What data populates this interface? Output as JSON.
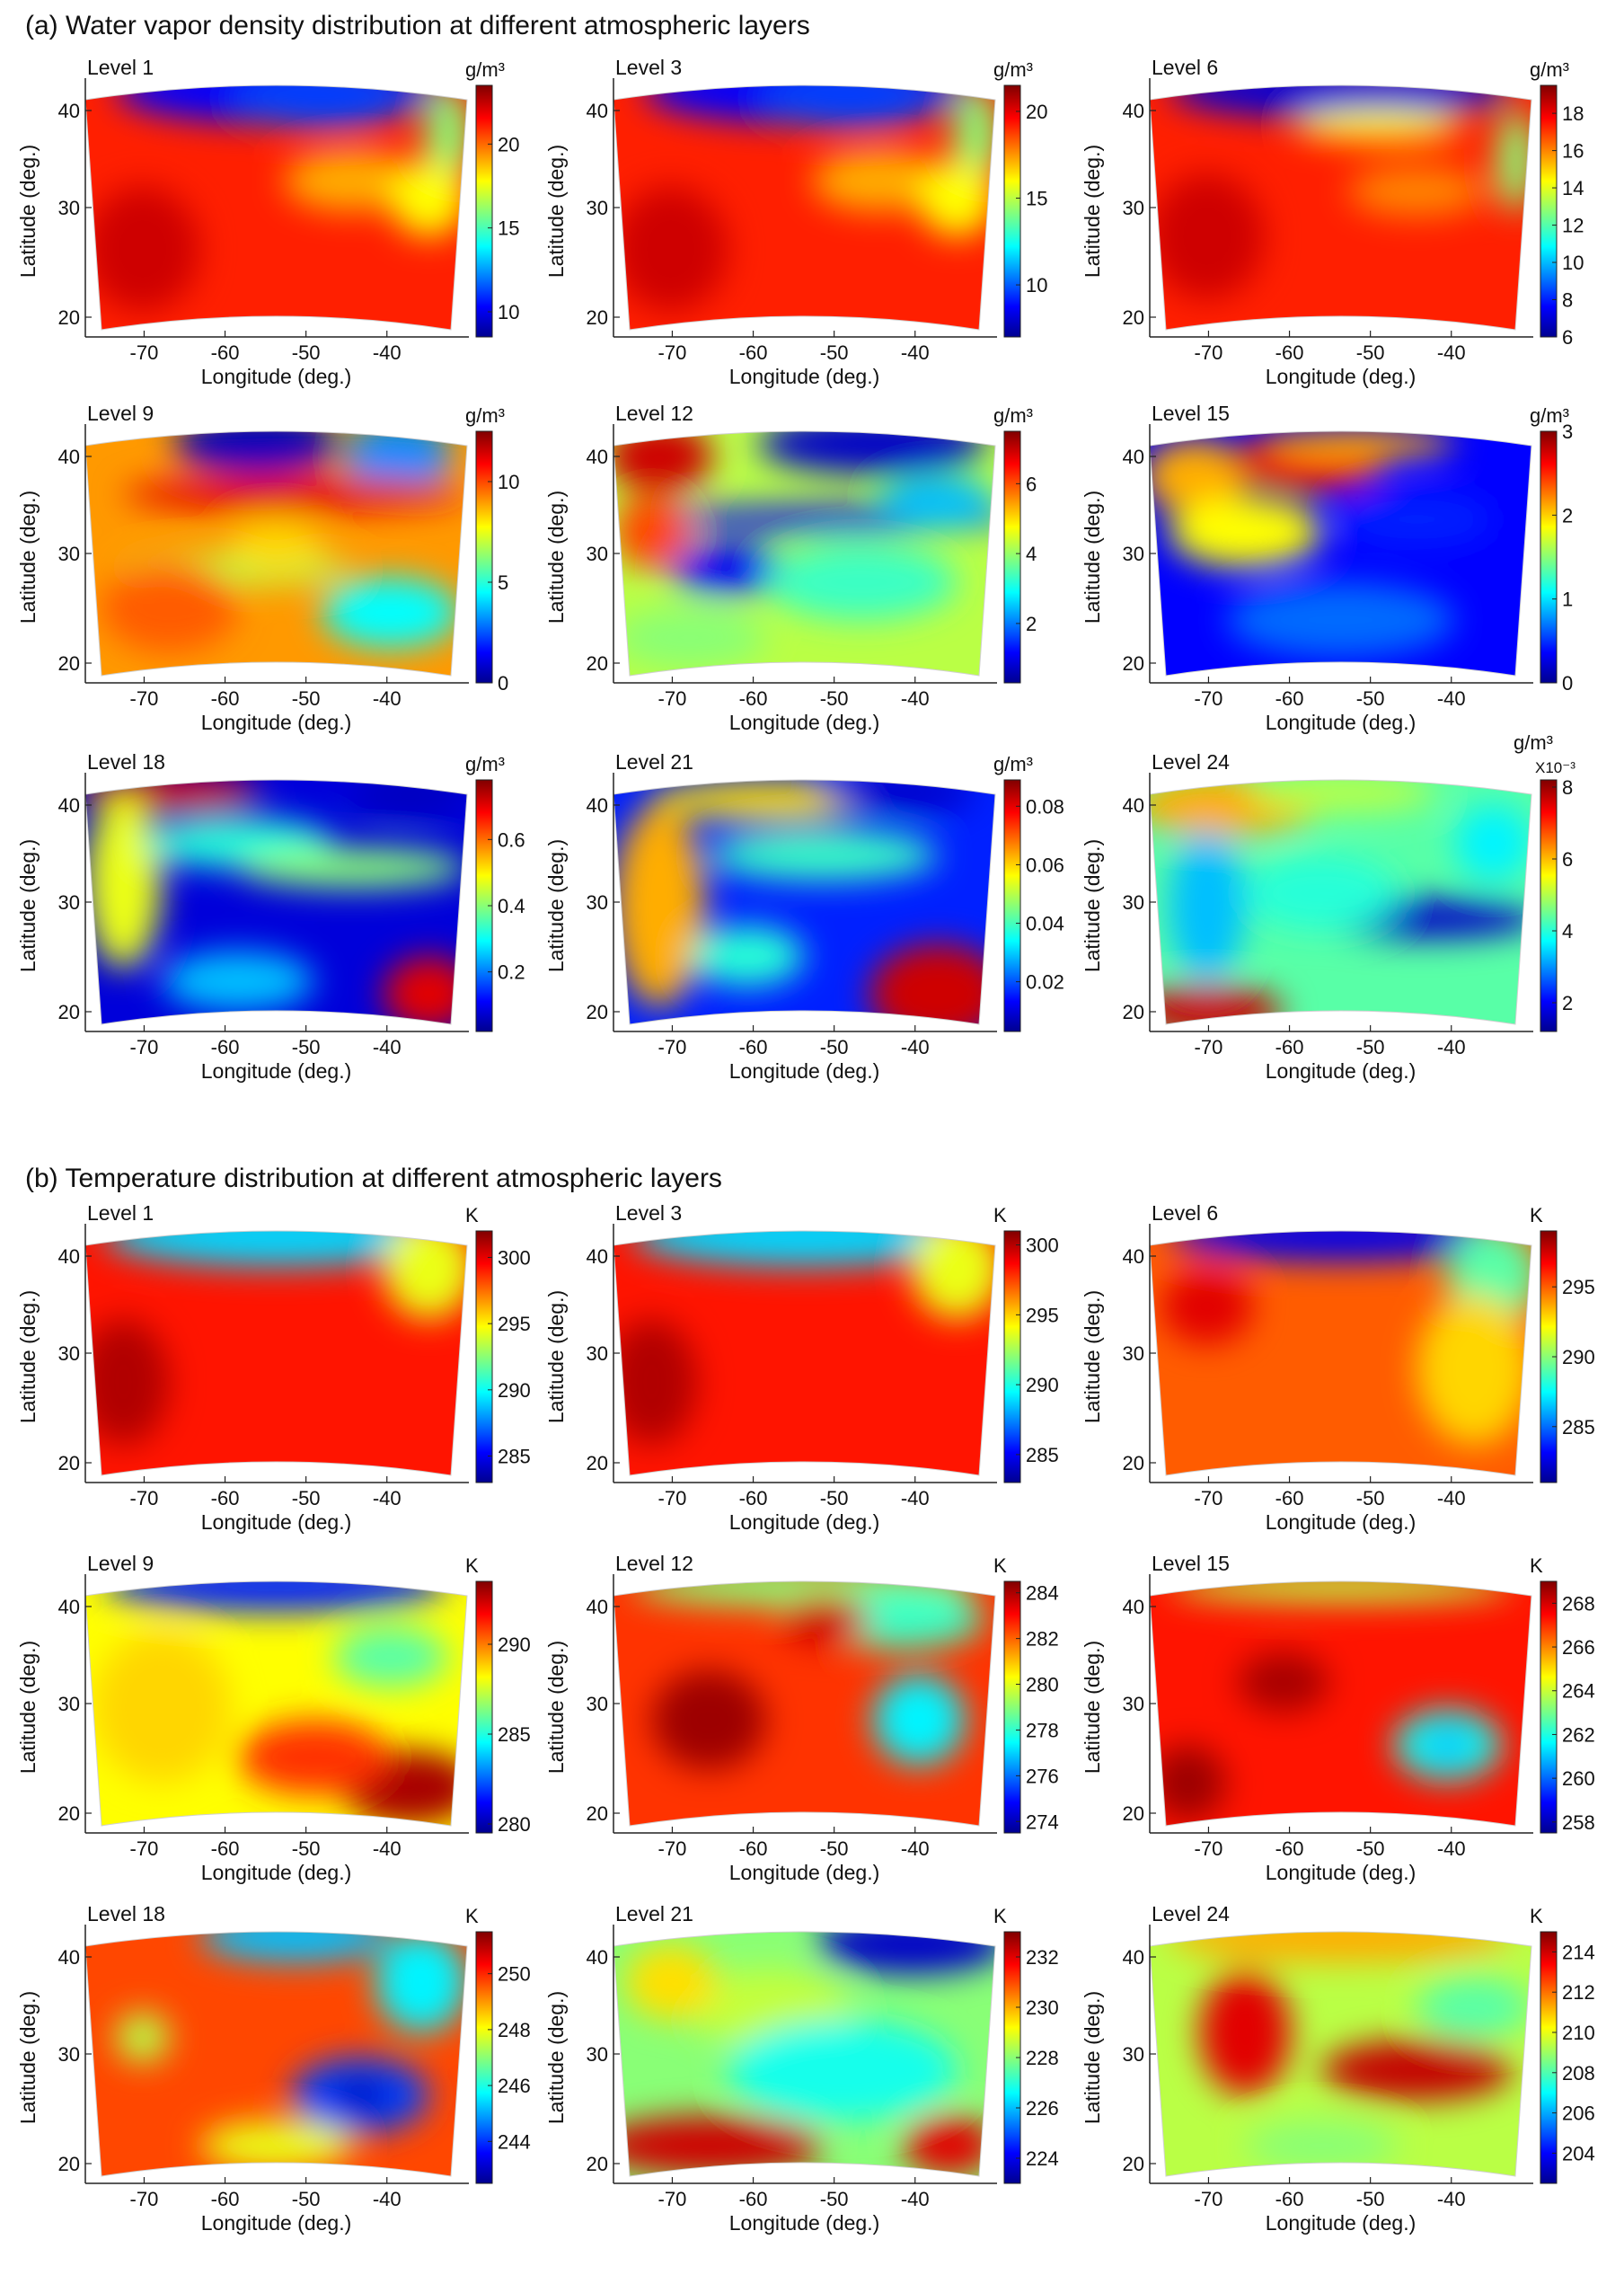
{
  "sections": [
    {
      "title": "(a) Water vapor density distribution at different atmospheric layers",
      "panels": [
        {
          "level": "Level 1",
          "unit": "g/m³",
          "ticks": [
            "10",
            "15",
            "20"
          ],
          "ylim": [
            8.5,
            23.5
          ],
          "longitudes": [
            "-70",
            "-60",
            "-50",
            "-40"
          ],
          "latitudes": [
            "20",
            "30",
            "40"
          ]
        },
        {
          "level": "Level 3",
          "unit": "g/m³",
          "ticks": [
            "10",
            "15",
            "20"
          ],
          "ylim": [
            7.0,
            21.5
          ],
          "longitudes": [
            "-70",
            "-60",
            "-50",
            "-40"
          ],
          "latitudes": [
            "20",
            "30",
            "40"
          ]
        },
        {
          "level": "Level 6",
          "unit": "g/m³",
          "ticks": [
            "6",
            "8",
            "10",
            "12",
            "14",
            "16",
            "18"
          ],
          "ylim": [
            6.0,
            19.5
          ],
          "longitudes": [
            "-70",
            "-60",
            "-50",
            "-40"
          ],
          "latitudes": [
            "20",
            "30",
            "40"
          ]
        },
        {
          "level": "Level 9",
          "unit": "g/m³",
          "ticks": [
            "0",
            "5",
            "10"
          ],
          "ylim": [
            0,
            12.5
          ],
          "longitudes": [
            "-70",
            "-60",
            "-50",
            "-40"
          ],
          "latitudes": [
            "20",
            "30",
            "40"
          ]
        },
        {
          "level": "Level 12",
          "unit": "g/m³",
          "ticks": [
            "2",
            "4",
            "6"
          ],
          "ylim": [
            0.3,
            7.5
          ],
          "longitudes": [
            "-70",
            "-60",
            "-50",
            "-40"
          ],
          "latitudes": [
            "20",
            "30",
            "40"
          ]
        },
        {
          "level": "Level 15",
          "unit": "g/m³",
          "ticks": [
            "0",
            "1",
            "2",
            "3"
          ],
          "ylim": [
            0,
            3
          ],
          "longitudes": [
            "-70",
            "-60",
            "-50",
            "-40"
          ],
          "latitudes": [
            "20",
            "30",
            "40"
          ]
        },
        {
          "level": "Level 18",
          "unit": "g/m³",
          "ticks": [
            "0.2",
            "0.4",
            "0.6"
          ],
          "ylim": [
            0.02,
            0.78
          ],
          "longitudes": [
            "-70",
            "-60",
            "-50",
            "-40"
          ],
          "latitudes": [
            "20",
            "30",
            "40"
          ]
        },
        {
          "level": "Level 21",
          "unit": "g/m³",
          "ticks": [
            "0.02",
            "0.04",
            "0.06",
            "0.08"
          ],
          "ylim": [
            0.003,
            0.089
          ],
          "longitudes": [
            "-70",
            "-60",
            "-50",
            "-40"
          ],
          "latitudes": [
            "20",
            "30",
            "40"
          ]
        },
        {
          "level": "Level 24",
          "unit": "g/m³",
          "multiplier": "X10⁻³",
          "ticks": [
            "2",
            "4",
            "6",
            "8"
          ],
          "ylim": [
            1.2,
            8.2
          ],
          "longitudes": [
            "-70",
            "-60",
            "-50",
            "-40"
          ],
          "latitudes": [
            "20",
            "30",
            "40"
          ]
        }
      ]
    },
    {
      "title": "(b) Temperature distribution at different atmospheric layers",
      "panels": [
        {
          "level": "Level 1",
          "unit": "K",
          "ticks": [
            "285",
            "290",
            "295",
            "300"
          ],
          "ylim": [
            283,
            302
          ],
          "longitudes": [
            "-70",
            "-60",
            "-50",
            "-40"
          ],
          "latitudes": [
            "20",
            "30",
            "40"
          ]
        },
        {
          "level": "Level 3",
          "unit": "K",
          "ticks": [
            "285",
            "290",
            "295",
            "300"
          ],
          "ylim": [
            283,
            301
          ],
          "longitudes": [
            "-70",
            "-60",
            "-50",
            "-40"
          ],
          "latitudes": [
            "20",
            "30",
            "40"
          ]
        },
        {
          "level": "Level 6",
          "unit": "K",
          "ticks": [
            "285",
            "290",
            "295"
          ],
          "ylim": [
            281,
            299
          ],
          "longitudes": [
            "-70",
            "-60",
            "-50",
            "-40"
          ],
          "latitudes": [
            "20",
            "30",
            "40"
          ]
        },
        {
          "level": "Level 9",
          "unit": "K",
          "ticks": [
            "280",
            "285",
            "290"
          ],
          "ylim": [
            279.5,
            293.5
          ],
          "longitudes": [
            "-70",
            "-60",
            "-50",
            "-40"
          ],
          "latitudes": [
            "20",
            "30",
            "40"
          ]
        },
        {
          "level": "Level 12",
          "unit": "K",
          "ticks": [
            "274",
            "276",
            "278",
            "280",
            "282",
            "284"
          ],
          "ylim": [
            273.5,
            284.5
          ],
          "longitudes": [
            "-70",
            "-60",
            "-50",
            "-40"
          ],
          "latitudes": [
            "20",
            "30",
            "40"
          ]
        },
        {
          "level": "Level 15",
          "unit": "K",
          "ticks": [
            "258",
            "260",
            "262",
            "264",
            "266",
            "268"
          ],
          "ylim": [
            257.5,
            269
          ],
          "longitudes": [
            "-70",
            "-60",
            "-50",
            "-40"
          ],
          "latitudes": [
            "20",
            "30",
            "40"
          ]
        },
        {
          "level": "Level 18",
          "unit": "K",
          "ticks": [
            "244",
            "246",
            "248",
            "250"
          ],
          "ylim": [
            242.5,
            251.5
          ],
          "longitudes": [
            "-70",
            "-60",
            "-50",
            "-40"
          ],
          "latitudes": [
            "20",
            "30",
            "40"
          ]
        },
        {
          "level": "Level 21",
          "unit": "K",
          "ticks": [
            "224",
            "226",
            "228",
            "230",
            "232"
          ],
          "ylim": [
            223,
            233
          ],
          "longitudes": [
            "-70",
            "-60",
            "-50",
            "-40"
          ],
          "latitudes": [
            "20",
            "30",
            "40"
          ]
        },
        {
          "level": "Level 24",
          "unit": "K",
          "ticks": [
            "204",
            "206",
            "208",
            "210",
            "212",
            "214"
          ],
          "ylim": [
            202.5,
            215
          ],
          "longitudes": [
            "-70",
            "-60",
            "-50",
            "-40"
          ],
          "latitudes": [
            "20",
            "30",
            "40"
          ]
        }
      ]
    }
  ],
  "axis_labels": {
    "x": "Longitude (deg.)",
    "y": "Latitude (deg.)"
  },
  "chart_data": {
    "type": "heatmap",
    "xlabel": "Longitude (deg.)",
    "ylabel": "Latitude (deg.)",
    "xlim": [
      -78,
      -30
    ],
    "ylim_lat": [
      18,
      42
    ],
    "x_ticks": [
      -70,
      -60,
      -50,
      -40
    ],
    "y_ticks": [
      20,
      30,
      40
    ],
    "colormap": "jet",
    "colormap_stops": [
      "#00008f",
      "#0000ff",
      "#00ffff",
      "#ffff00",
      "#ff0000",
      "#800000"
    ]
  }
}
